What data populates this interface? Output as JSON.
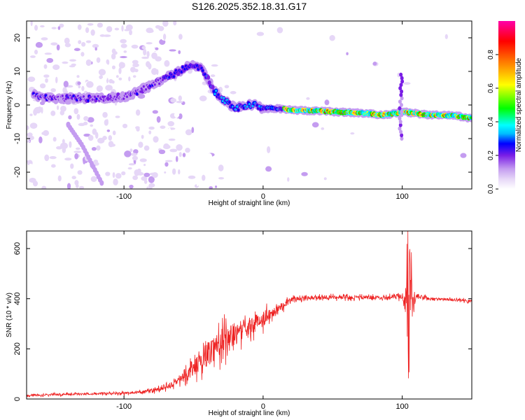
{
  "chart_data": [
    {
      "type": "heatmap",
      "title": "S126.2025.352.18.31.G17",
      "xlabel": "Height of straight line (km)",
      "ylabel": "Frequency (Hz)",
      "xlim": [
        -170,
        150
      ],
      "ylim": [
        -25,
        25
      ],
      "x_ticks": [
        -100,
        0,
        100
      ],
      "y_ticks": [
        -20,
        -10,
        0,
        10,
        20
      ],
      "colorbar": {
        "label": "Normalized spectral amplitude",
        "range": [
          0,
          1
        ],
        "ticks": [
          0.0,
          0.2,
          0.4,
          0.6,
          0.8
        ],
        "tick_labels": [
          "0.0",
          "0.2",
          "0.4",
          "0.6",
          "0.8"
        ],
        "colors": [
          "#ffffff",
          "#e6d7f7",
          "#c49cf0",
          "#7a1fe6",
          "#0000ff",
          "#00bfff",
          "#00ffff",
          "#00ff00",
          "#ffff00",
          "#ff8000",
          "#ff0000",
          "#ff00aa"
        ]
      },
      "main_track": [
        [
          -165,
          3
        ],
        [
          -150,
          2
        ],
        [
          -130,
          2
        ],
        [
          -115,
          2
        ],
        [
          -100,
          2.5
        ],
        [
          -90,
          4
        ],
        [
          -80,
          6
        ],
        [
          -70,
          8
        ],
        [
          -60,
          10
        ],
        [
          -52,
          12
        ],
        [
          -45,
          11
        ],
        [
          -40,
          8
        ],
        [
          -35,
          4
        ],
        [
          -30,
          2
        ],
        [
          -25,
          0.5
        ],
        [
          -20,
          -1
        ],
        [
          -15,
          -0.5
        ],
        [
          -10,
          0
        ],
        [
          -5,
          0
        ],
        [
          0,
          -1
        ],
        [
          10,
          -1
        ],
        [
          20,
          -1.5
        ],
        [
          40,
          -1.8
        ],
        [
          60,
          -2.2
        ],
        [
          75,
          -2.5
        ],
        [
          85,
          -3
        ],
        [
          95,
          -2.5
        ],
        [
          100,
          -2
        ],
        [
          110,
          -2.5
        ],
        [
          120,
          -3
        ],
        [
          130,
          -3
        ],
        [
          140,
          -3.3
        ],
        [
          150,
          -4
        ]
      ],
      "secondary_track": [
        [
          -140,
          -6
        ],
        [
          -130,
          -12
        ],
        [
          -120,
          -20
        ],
        [
          -115,
          -24
        ]
      ]
    },
    {
      "type": "line",
      "xlabel": "Height of straight line (km)",
      "ylabel": "SNR (10 * v/v)",
      "xlim": [
        -170,
        150
      ],
      "ylim": [
        0,
        670
      ],
      "x_ticks": [
        -100,
        0,
        100
      ],
      "y_ticks": [
        0,
        200,
        400,
        600
      ],
      "color": "#ee2222",
      "series": [
        {
          "name": "SNR",
          "x": [
            -170,
            -150,
            -130,
            -110,
            -90,
            -80,
            -70,
            -60,
            -50,
            -40,
            -30,
            -20,
            -10,
            0,
            10,
            20,
            30,
            50,
            70,
            90,
            100,
            104,
            106,
            110,
            120,
            140,
            150
          ],
          "values": [
            15,
            18,
            20,
            22,
            26,
            32,
            45,
            75,
            120,
            180,
            230,
            260,
            290,
            320,
            360,
            395,
            405,
            405,
            405,
            405,
            410,
            390,
            350,
            410,
            400,
            395,
            390
          ],
          "noise_amplitude": [
            8,
            8,
            8,
            8,
            10,
            14,
            20,
            30,
            60,
            100,
            110,
            90,
            70,
            60,
            40,
            20,
            15,
            15,
            15,
            15,
            20,
            250,
            200,
            20,
            12,
            10,
            10
          ]
        }
      ]
    }
  ]
}
